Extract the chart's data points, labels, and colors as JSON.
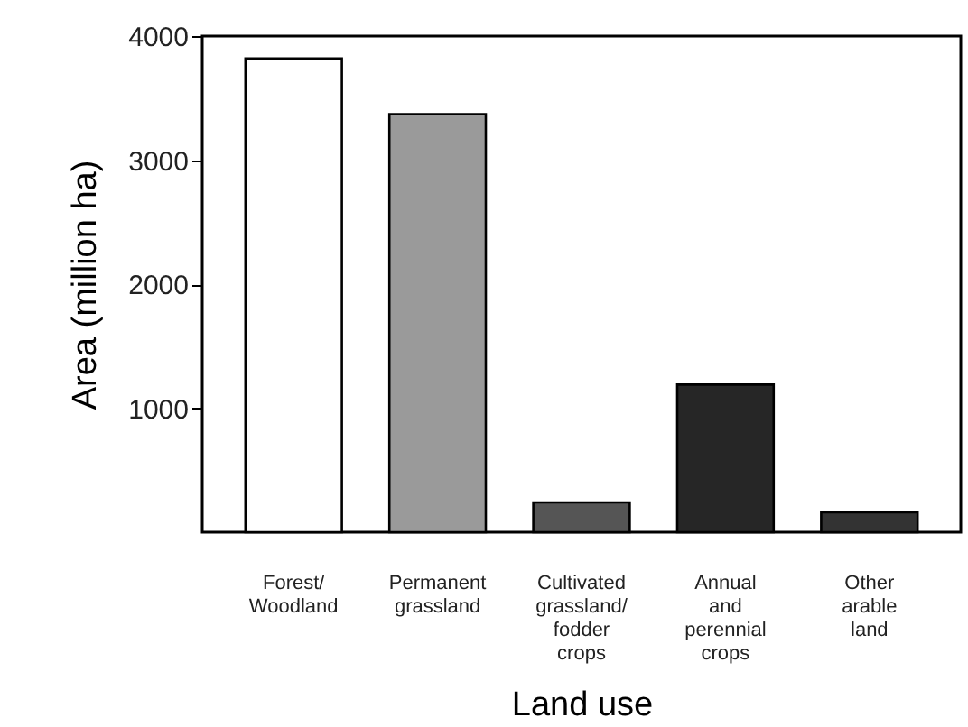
{
  "chart_data": {
    "type": "bar",
    "xlabel": "Land use",
    "ylabel": "Area (million ha)",
    "categories": [
      "Forest/\nWoodland",
      "Permanent\ngrassland",
      "Cultivated\ngrassland/\nfodder\ncrops",
      "Annual\nand\nperennial\ncrops",
      "Other\narable\nland"
    ],
    "values": [
      3820,
      3370,
      240,
      1190,
      160
    ],
    "colors": [
      "#ffffff",
      "#9a9a9a",
      "#555555",
      "#262626",
      "#333333"
    ],
    "ylim": [
      0,
      4000
    ],
    "yticks": [
      1000,
      2000,
      3000,
      4000
    ],
    "grid": false
  }
}
